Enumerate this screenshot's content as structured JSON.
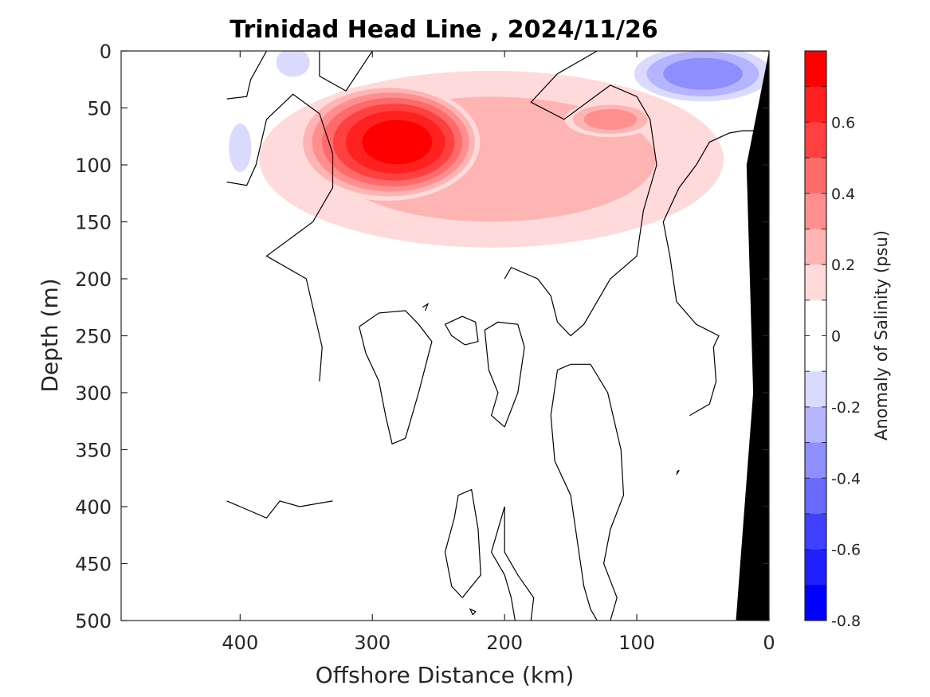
{
  "chart_data": {
    "type": "contour",
    "title": "Trinidad Head Line , 2024/11/26",
    "xlabel": "Offshore Distance (km)",
    "ylabel": "Depth (m)",
    "xlim": [
      490,
      0
    ],
    "ylim": [
      0,
      500
    ],
    "x_reversed": true,
    "y_reversed": true,
    "xticks": [
      400,
      300,
      200,
      100,
      0
    ],
    "yticks": [
      0,
      50,
      100,
      150,
      200,
      250,
      300,
      350,
      400,
      450,
      500
    ],
    "colorbar": {
      "label": "Anomaly of Salinity (psu)",
      "range": [
        -0.8,
        0.8
      ],
      "level_step": 0.1,
      "ticks": [
        0.6,
        0.4,
        0.2,
        0,
        -0.2,
        -0.4,
        -0.6,
        -0.8
      ],
      "tick_labels": [
        "0.6",
        "0.4",
        "0.2",
        "0",
        "-0.2",
        "-0.4",
        "-0.6",
        "-0.8"
      ],
      "colors_high_to_low": [
        "#ff0000",
        "#ff2020",
        "#ff4040",
        "#ff6a6a",
        "#ff8e8e",
        "#ffb4b4",
        "#ffdada",
        "#ffffff",
        "#ffffff",
        "#dadaff",
        "#b4b4ff",
        "#8e8eff",
        "#6a6aff",
        "#4040ff",
        "#2020ff",
        "#0000ff"
      ]
    },
    "features": [
      {
        "name": "salinity maximum",
        "x_km": 290,
        "depth_m": 80,
        "value": 0.75
      },
      {
        "name": "secondary positive lobe",
        "x_km": 120,
        "depth_m": 60,
        "value": 0.35
      },
      {
        "name": "surface negative lobe nearshore",
        "x_km": 50,
        "depth_m": 20,
        "value": -0.35
      },
      {
        "name": "surface negative patch offshore",
        "x_km": 360,
        "depth_m": 10,
        "value": -0.2
      },
      {
        "name": "negative patch western edge",
        "x_km": 400,
        "depth_m": 85,
        "value": -0.2
      },
      {
        "name": "continental shelf bathymetry",
        "x_km_at_surface": 0,
        "x_km_at_500m": 25
      }
    ]
  }
}
